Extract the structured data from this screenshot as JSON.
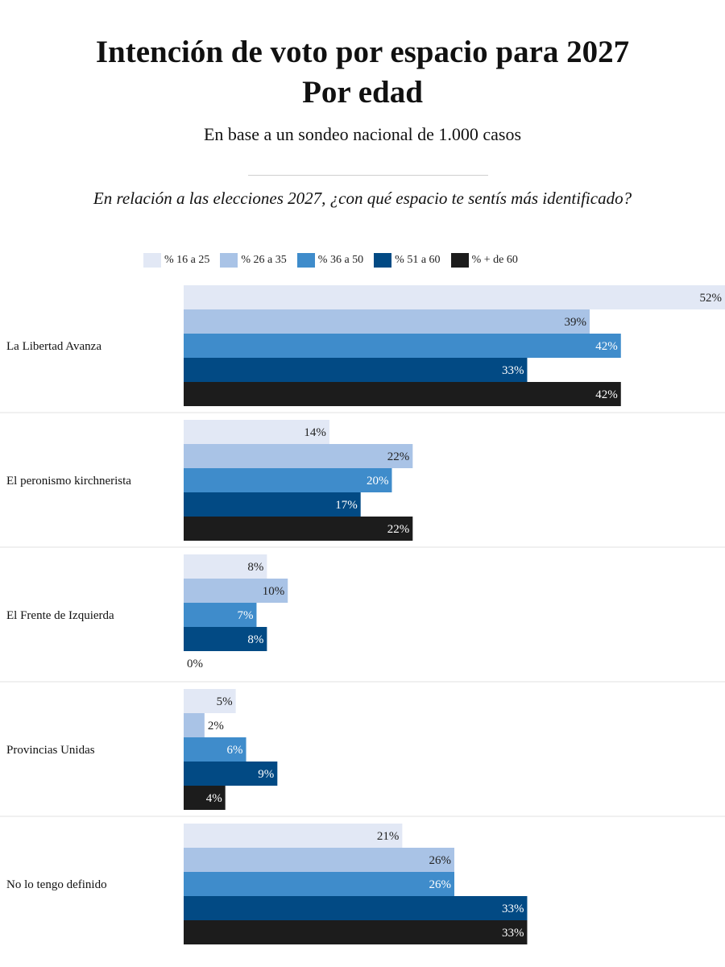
{
  "header": {
    "title_line1": "Intención de voto por espacio para 2027",
    "title_line2": "Por edad",
    "subtitle": "En base a un sondeo nacional de 1.000 casos",
    "question": "En relación a las elecciones 2027, ¿con qué espacio te sentís más identificado?"
  },
  "chart_data": {
    "type": "bar",
    "orientation": "horizontal",
    "title": "Intención de voto por espacio para 2027",
    "subtitle": "Por edad",
    "categories": [
      "La Libertad Avanza",
      "El peronismo kirchnerista",
      "El Frente de Izquierda",
      "Provincias Unidas",
      "No lo tengo definido"
    ],
    "series": [
      {
        "name": "% 16 a 25",
        "color": "#e2e8f5",
        "label_color": "#222222",
        "values": [
          52,
          14,
          8,
          5,
          21
        ]
      },
      {
        "name": "% 26 a 35",
        "color": "#a9c3e6",
        "label_color": "#222222",
        "values": [
          39,
          22,
          10,
          2,
          26
        ]
      },
      {
        "name": "% 36 a 50",
        "color": "#3f8ccb",
        "label_color": "#ffffff",
        "values": [
          42,
          20,
          7,
          6,
          26
        ]
      },
      {
        "name": "% 51 a 60",
        "color": "#024a84",
        "label_color": "#ffffff",
        "values": [
          33,
          17,
          8,
          9,
          33
        ]
      },
      {
        "name": "% + de 60",
        "color": "#1c1c1c",
        "label_color": "#ffffff",
        "values": [
          42,
          22,
          0,
          4,
          33
        ]
      }
    ],
    "value_suffix": "%",
    "xlim": [
      0,
      52
    ],
    "legend_position": "top",
    "grid": false
  }
}
